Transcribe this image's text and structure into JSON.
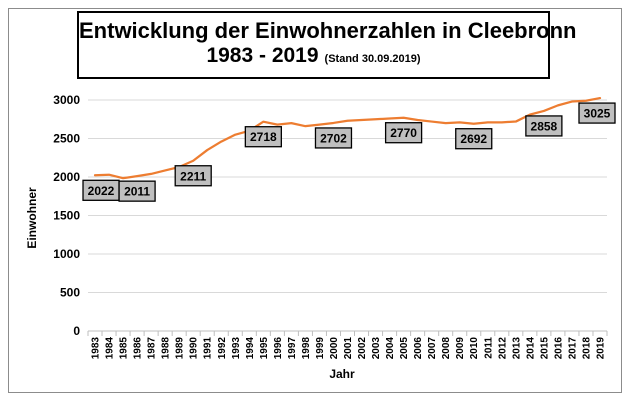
{
  "title": {
    "line1": "Entwicklung der Einwohnerzahlen in Cleebronn",
    "years": "1983 - 2019",
    "stand": "(Stand 30.09.2019)"
  },
  "colors": {
    "line": "#ed7d31",
    "grid": "#d9d9d9",
    "label_box": "#bfbfbf"
  },
  "chart_data": {
    "type": "line",
    "title": "Entwicklung der Einwohnerzahlen in Cleebronn 1983 - 2019 (Stand 30.09.2019)",
    "xlabel": "Jahr",
    "ylabel": "Einwohner",
    "ylim": [
      0,
      3000
    ],
    "yticks": [
      0,
      500,
      1000,
      1500,
      2000,
      2500,
      3000
    ],
    "grid": true,
    "legend": "none",
    "categories": [
      "1983",
      "1984",
      "1985",
      "1986",
      "1987",
      "1988",
      "1989",
      "1990",
      "1991",
      "1992",
      "1993",
      "1994",
      "1995",
      "1996",
      "1997",
      "1998",
      "1999",
      "2000",
      "2001",
      "2002",
      "2003",
      "2004",
      "2005",
      "2006",
      "2007",
      "2008",
      "2009",
      "2010",
      "2011",
      "2012",
      "2013",
      "2014",
      "2015",
      "2016",
      "2017",
      "2018",
      "2019"
    ],
    "series": [
      {
        "values": [
          2022,
          2030,
          1985,
          2011,
          2040,
          2085,
          2130,
          2211,
          2350,
          2460,
          2550,
          2600,
          2718,
          2680,
          2700,
          2660,
          2680,
          2702,
          2730,
          2740,
          2750,
          2760,
          2770,
          2740,
          2720,
          2700,
          2710,
          2692,
          2710,
          2710,
          2720,
          2810,
          2858,
          2930,
          2980,
          2990,
          3025
        ]
      }
    ],
    "data_labels": [
      {
        "year": "1983",
        "text": "2022"
      },
      {
        "year": "1986",
        "text": "2011"
      },
      {
        "year": "1990",
        "text": "2211"
      },
      {
        "year": "1995",
        "text": "2718"
      },
      {
        "year": "2000",
        "text": "2702"
      },
      {
        "year": "2005",
        "text": "2770"
      },
      {
        "year": "2010",
        "text": "2692"
      },
      {
        "year": "2015",
        "text": "2858"
      },
      {
        "year": "2019",
        "text": "3025"
      }
    ]
  }
}
